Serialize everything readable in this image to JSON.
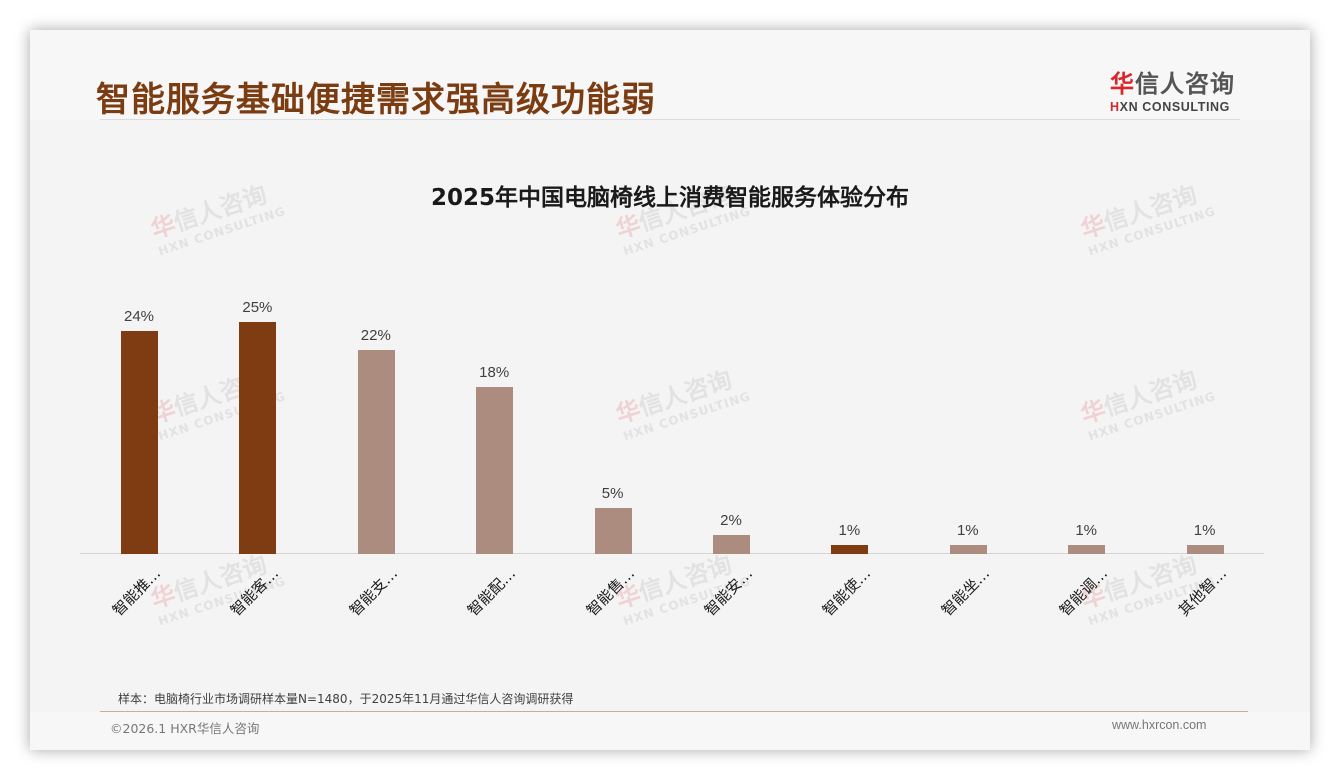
{
  "header": {
    "title": "智能服务基础便捷需求强高级功能弱",
    "logo": {
      "cn_red": "华",
      "cn_rest": "信人咨询",
      "en_red": "H",
      "en_rest": "XN CONSULTING"
    }
  },
  "watermark": {
    "cn_red": "华",
    "cn_rest": "信人咨询",
    "en": "HXN CONSULTING"
  },
  "colors": {
    "highlight": "#7f3b12",
    "normal": "#ad8c80",
    "title": "#7b3c12",
    "logo_red": "#d9262c"
  },
  "chart_data": {
    "type": "bar",
    "title": "2025年中国电脑椅线上消费智能服务体验分布",
    "categories": [
      "智能推…",
      "智能客…",
      "智能支…",
      "智能配…",
      "智能售…",
      "智能安…",
      "智能使…",
      "智能坐…",
      "智能调…",
      "其他智…"
    ],
    "values": [
      24,
      25,
      22,
      18,
      5,
      2,
      1,
      1,
      1,
      1
    ],
    "value_labels": [
      "24%",
      "25%",
      "22%",
      "18%",
      "5%",
      "2%",
      "1%",
      "1%",
      "1%",
      "1%"
    ],
    "highlighted": [
      true,
      true,
      false,
      false,
      false,
      false,
      true,
      false,
      false,
      false
    ],
    "xlabel": "",
    "ylabel": "",
    "ylim": [
      0,
      25
    ],
    "grid": false,
    "legend": null,
    "unit": "%"
  },
  "footer": {
    "note": "样本：电脑椅行业市场调研样本量N=1480，于2025年11月通过华信人咨询调研获得",
    "copyright": "©2026.1 HXR华信人咨询",
    "website": "www.hxrcon.com"
  }
}
